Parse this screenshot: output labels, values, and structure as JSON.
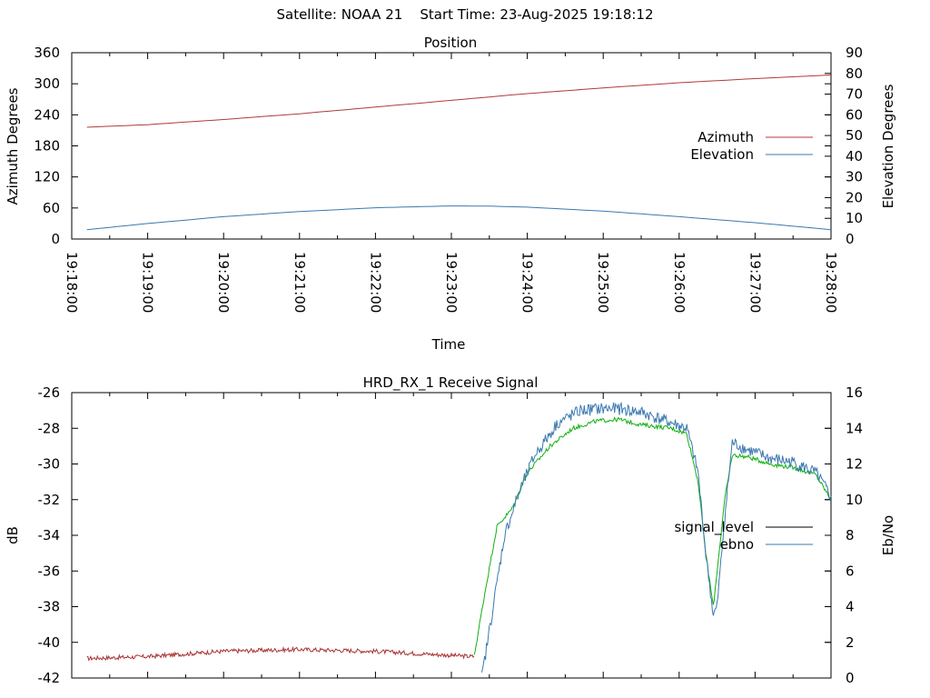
{
  "header": {
    "satellite": "Satellite: NOAA 21",
    "start_time": "Start Time: 23-Aug-2025 19:18:12"
  },
  "chart_data": [
    {
      "type": "line",
      "title": "Position",
      "xlabel": "Time",
      "ylabel": "Azimuth Degrees",
      "y2label": "Elevation Degrees",
      "x_ticks": [
        "19:18:00",
        "19:19:00",
        "19:20:00",
        "19:21:00",
        "19:22:00",
        "19:23:00",
        "19:24:00",
        "19:25:00",
        "19:26:00",
        "19:27:00",
        "19:28:00"
      ],
      "xlim_minutes": [
        0,
        10
      ],
      "ylim": [
        0,
        360
      ],
      "y_ticks": [
        "0",
        "60",
        "120",
        "180",
        "240",
        "300",
        "360"
      ],
      "y2lim": [
        0,
        90
      ],
      "y2_ticks": [
        "0",
        "10",
        "20",
        "30",
        "40",
        "50",
        "60",
        "70",
        "80",
        "90"
      ],
      "legend_position": "right",
      "series": [
        {
          "name": "Azimuth",
          "axis": "y",
          "color": "#b03a3a",
          "x_minutes": [
            0.2,
            1,
            2,
            3,
            4,
            5,
            6,
            7,
            8,
            9,
            10
          ],
          "values": [
            216,
            221,
            231,
            242,
            255,
            268,
            281,
            292,
            302,
            310,
            317
          ]
        },
        {
          "name": "Elevation",
          "axis": "y2",
          "color": "#3a78b0",
          "x_minutes": [
            0.2,
            1,
            2,
            3,
            4,
            5,
            5.5,
            6,
            7,
            8,
            9,
            10
          ],
          "values": [
            4.5,
            7.5,
            10.8,
            13.3,
            15.1,
            16,
            15.9,
            15.4,
            13.5,
            10.8,
            7.9,
            4.5
          ]
        }
      ]
    },
    {
      "type": "line",
      "title": "HRD_RX_1 Receive Signal",
      "ylabel": "dB",
      "y2label": "Eb/No",
      "xlim_minutes": [
        0,
        10
      ],
      "ylim": [
        -42,
        -26
      ],
      "y_ticks": [
        "-42",
        "-40",
        "-38",
        "-36",
        "-34",
        "-32",
        "-30",
        "-28",
        "-26"
      ],
      "y2lim": [
        0,
        16
      ],
      "y2_ticks": [
        "0",
        "2",
        "4",
        "6",
        "8",
        "10",
        "12",
        "14",
        "16"
      ],
      "legend_position": "right",
      "series": [
        {
          "name": "signal_level",
          "axis": "y",
          "color": "#000000",
          "x_minutes": [
            0.2,
            1,
            2,
            3,
            4,
            5.3
          ],
          "values": [
            -40.9,
            -40.8,
            -40.5,
            -40.4,
            -40.5,
            -40.8
          ]
        },
        {
          "name": "signal_level (green)",
          "axis": "y",
          "color": "#10b010",
          "x_minutes": [
            5.3,
            5.45,
            5.6,
            5.8,
            6.0,
            6.3,
            6.6,
            6.9,
            7.2,
            7.5,
            7.9,
            8.1,
            8.25,
            8.35,
            8.45,
            8.5,
            8.6,
            8.7,
            8.9,
            9.2,
            9.5,
            9.8,
            10
          ],
          "values": [
            -40.8,
            -37,
            -33.5,
            -32.5,
            -30.5,
            -29,
            -28,
            -27.6,
            -27.5,
            -27.8,
            -28.0,
            -28.3,
            -31,
            -35,
            -38,
            -36,
            -32,
            -29.5,
            -29.6,
            -30,
            -30.2,
            -30.6,
            -32
          ]
        },
        {
          "name": "ebno",
          "axis": "y2",
          "color": "#3a78b0",
          "x_minutes": [
            5.4,
            5.55,
            5.7,
            5.9,
            6.1,
            6.4,
            6.7,
            6.95,
            7.2,
            7.5,
            7.9,
            8.1,
            8.25,
            8.35,
            8.45,
            8.5,
            8.6,
            8.7,
            8.9,
            9.2,
            9.5,
            9.8,
            10
          ],
          "values": [
            0,
            4,
            8,
            10.5,
            12.5,
            14.3,
            15,
            15.1,
            15.1,
            14.9,
            14.3,
            14,
            11.5,
            7,
            3.5,
            4,
            9,
            13.2,
            12.8,
            12.3,
            12.1,
            11.5,
            10.2
          ]
        }
      ]
    }
  ],
  "legend_names": {
    "azimuth": "Azimuth",
    "elevation": "Elevation",
    "signal_level": "signal_level",
    "ebno": "ebno"
  }
}
